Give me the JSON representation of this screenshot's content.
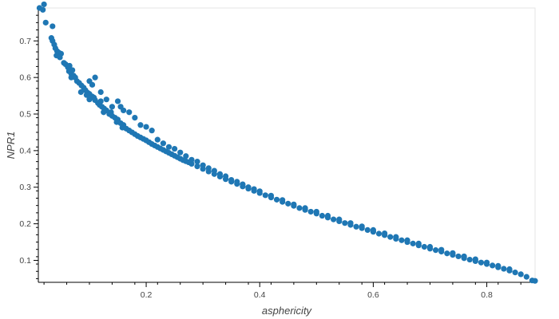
{
  "chart_data": {
    "type": "scatter",
    "title": "",
    "xlabel": "asphericity",
    "ylabel": "NPR1",
    "xlim": [
      0.01,
      0.885
    ],
    "ylim": [
      0.04,
      0.79
    ],
    "x_ticks": [
      0.2,
      0.4,
      0.6,
      0.8
    ],
    "y_ticks": [
      0.1,
      0.2,
      0.3,
      0.4,
      0.5,
      0.6,
      0.7
    ],
    "grid": false,
    "legend": "none",
    "marker_color": "#1f77b4",
    "series": [
      {
        "points": [
          [
            0.012,
            0.79
          ],
          [
            0.02,
            0.8
          ],
          [
            0.018,
            0.785
          ],
          [
            0.023,
            0.75
          ],
          [
            0.035,
            0.74
          ],
          [
            0.033,
            0.708
          ],
          [
            0.035,
            0.7
          ],
          [
            0.038,
            0.69
          ],
          [
            0.04,
            0.68
          ],
          [
            0.043,
            0.672
          ],
          [
            0.046,
            0.668
          ],
          [
            0.05,
            0.665
          ],
          [
            0.042,
            0.66
          ],
          [
            0.048,
            0.655
          ],
          [
            0.055,
            0.64
          ],
          [
            0.058,
            0.636
          ],
          [
            0.062,
            0.628
          ],
          [
            0.065,
            0.632
          ],
          [
            0.07,
            0.62
          ],
          [
            0.064,
            0.617
          ],
          [
            0.068,
            0.61
          ],
          [
            0.072,
            0.605
          ],
          [
            0.075,
            0.6
          ],
          [
            0.068,
            0.6
          ],
          [
            0.078,
            0.59
          ],
          [
            0.082,
            0.585
          ],
          [
            0.086,
            0.578
          ],
          [
            0.09,
            0.572
          ],
          [
            0.085,
            0.56
          ],
          [
            0.093,
            0.565
          ],
          [
            0.097,
            0.558
          ],
          [
            0.1,
            0.555
          ],
          [
            0.095,
            0.552
          ],
          [
            0.105,
            0.548
          ],
          [
            0.1,
            0.54
          ],
          [
            0.108,
            0.545
          ],
          [
            0.11,
            0.538
          ],
          [
            0.115,
            0.53
          ],
          [
            0.12,
            0.535
          ],
          [
            0.118,
            0.525
          ],
          [
            0.122,
            0.52
          ],
          [
            0.126,
            0.515
          ],
          [
            0.13,
            0.51
          ],
          [
            0.125,
            0.505
          ],
          [
            0.135,
            0.5
          ],
          [
            0.14,
            0.495
          ],
          [
            0.138,
            0.505
          ],
          [
            0.145,
            0.49
          ],
          [
            0.15,
            0.485
          ],
          [
            0.148,
            0.478
          ],
          [
            0.155,
            0.475
          ],
          [
            0.16,
            0.47
          ],
          [
            0.158,
            0.463
          ],
          [
            0.165,
            0.46
          ],
          [
            0.17,
            0.455
          ],
          [
            0.175,
            0.45
          ],
          [
            0.18,
            0.445
          ],
          [
            0.185,
            0.44
          ],
          [
            0.19,
            0.436
          ],
          [
            0.195,
            0.432
          ],
          [
            0.2,
            0.428
          ],
          [
            0.205,
            0.423
          ],
          [
            0.21,
            0.418
          ],
          [
            0.215,
            0.414
          ],
          [
            0.22,
            0.41
          ],
          [
            0.225,
            0.406
          ],
          [
            0.23,
            0.402
          ],
          [
            0.235,
            0.398
          ],
          [
            0.24,
            0.394
          ],
          [
            0.245,
            0.39
          ],
          [
            0.25,
            0.386
          ],
          [
            0.255,
            0.382
          ],
          [
            0.26,
            0.378
          ],
          [
            0.265,
            0.374
          ],
          [
            0.27,
            0.371
          ],
          [
            0.275,
            0.368
          ],
          [
            0.28,
            0.364
          ],
          [
            0.29,
            0.357
          ],
          [
            0.3,
            0.35
          ],
          [
            0.31,
            0.343
          ],
          [
            0.32,
            0.336
          ],
          [
            0.33,
            0.329
          ],
          [
            0.34,
            0.322
          ],
          [
            0.35,
            0.315
          ],
          [
            0.36,
            0.309
          ],
          [
            0.37,
            0.302
          ],
          [
            0.38,
            0.296
          ],
          [
            0.39,
            0.29
          ],
          [
            0.4,
            0.284
          ],
          [
            0.41,
            0.278
          ],
          [
            0.42,
            0.272
          ],
          [
            0.43,
            0.266
          ],
          [
            0.44,
            0.26
          ],
          [
            0.45,
            0.255
          ],
          [
            0.46,
            0.249
          ],
          [
            0.47,
            0.243
          ],
          [
            0.48,
            0.238
          ],
          [
            0.49,
            0.233
          ],
          [
            0.5,
            0.228
          ],
          [
            0.51,
            0.222
          ],
          [
            0.52,
            0.217
          ],
          [
            0.53,
            0.212
          ],
          [
            0.54,
            0.207
          ],
          [
            0.55,
            0.202
          ],
          [
            0.56,
            0.197
          ],
          [
            0.57,
            0.192
          ],
          [
            0.58,
            0.188
          ],
          [
            0.59,
            0.183
          ],
          [
            0.6,
            0.178
          ],
          [
            0.61,
            0.173
          ],
          [
            0.62,
            0.169
          ],
          [
            0.63,
            0.164
          ],
          [
            0.64,
            0.159
          ],
          [
            0.65,
            0.155
          ],
          [
            0.66,
            0.15
          ],
          [
            0.67,
            0.146
          ],
          [
            0.68,
            0.141
          ],
          [
            0.69,
            0.137
          ],
          [
            0.7,
            0.132
          ],
          [
            0.71,
            0.128
          ],
          [
            0.72,
            0.124
          ],
          [
            0.73,
            0.119
          ],
          [
            0.74,
            0.115
          ],
          [
            0.75,
            0.111
          ],
          [
            0.76,
            0.106
          ],
          [
            0.77,
            0.102
          ],
          [
            0.78,
            0.098
          ],
          [
            0.79,
            0.094
          ],
          [
            0.8,
            0.09
          ],
          [
            0.81,
            0.086
          ],
          [
            0.82,
            0.081
          ],
          [
            0.83,
            0.077
          ],
          [
            0.84,
            0.072
          ],
          [
            0.85,
            0.067
          ],
          [
            0.86,
            0.062
          ],
          [
            0.87,
            0.055
          ],
          [
            0.88,
            0.045
          ],
          [
            0.885,
            0.044
          ],
          [
            0.1,
            0.59
          ],
          [
            0.105,
            0.58
          ],
          [
            0.11,
            0.6
          ],
          [
            0.12,
            0.56
          ],
          [
            0.13,
            0.54
          ],
          [
            0.14,
            0.52
          ],
          [
            0.15,
            0.535
          ],
          [
            0.155,
            0.52
          ],
          [
            0.16,
            0.51
          ],
          [
            0.17,
            0.505
          ],
          [
            0.18,
            0.49
          ],
          [
            0.19,
            0.47
          ],
          [
            0.2,
            0.465
          ],
          [
            0.21,
            0.455
          ],
          [
            0.22,
            0.43
          ],
          [
            0.23,
            0.42
          ],
          [
            0.24,
            0.41
          ],
          [
            0.25,
            0.405
          ],
          [
            0.26,
            0.395
          ],
          [
            0.27,
            0.385
          ],
          [
            0.28,
            0.375
          ],
          [
            0.29,
            0.37
          ],
          [
            0.3,
            0.36
          ],
          [
            0.31,
            0.352
          ],
          [
            0.32,
            0.345
          ],
          [
            0.33,
            0.336
          ],
          [
            0.34,
            0.33
          ],
          [
            0.35,
            0.32
          ],
          [
            0.36,
            0.315
          ],
          [
            0.37,
            0.308
          ],
          [
            0.38,
            0.3
          ],
          [
            0.39,
            0.295
          ],
          [
            0.4,
            0.289
          ],
          [
            0.42,
            0.277
          ],
          [
            0.44,
            0.265
          ],
          [
            0.46,
            0.253
          ],
          [
            0.48,
            0.243
          ],
          [
            0.5,
            0.233
          ],
          [
            0.52,
            0.222
          ],
          [
            0.54,
            0.212
          ],
          [
            0.56,
            0.202
          ],
          [
            0.58,
            0.193
          ],
          [
            0.6,
            0.183
          ],
          [
            0.62,
            0.174
          ],
          [
            0.64,
            0.164
          ],
          [
            0.66,
            0.155
          ],
          [
            0.68,
            0.146
          ],
          [
            0.7,
            0.137
          ],
          [
            0.72,
            0.129
          ],
          [
            0.74,
            0.12
          ],
          [
            0.76,
            0.111
          ],
          [
            0.78,
            0.103
          ],
          [
            0.8,
            0.094
          ],
          [
            0.82,
            0.085
          ],
          [
            0.84,
            0.076
          ]
        ]
      }
    ]
  }
}
